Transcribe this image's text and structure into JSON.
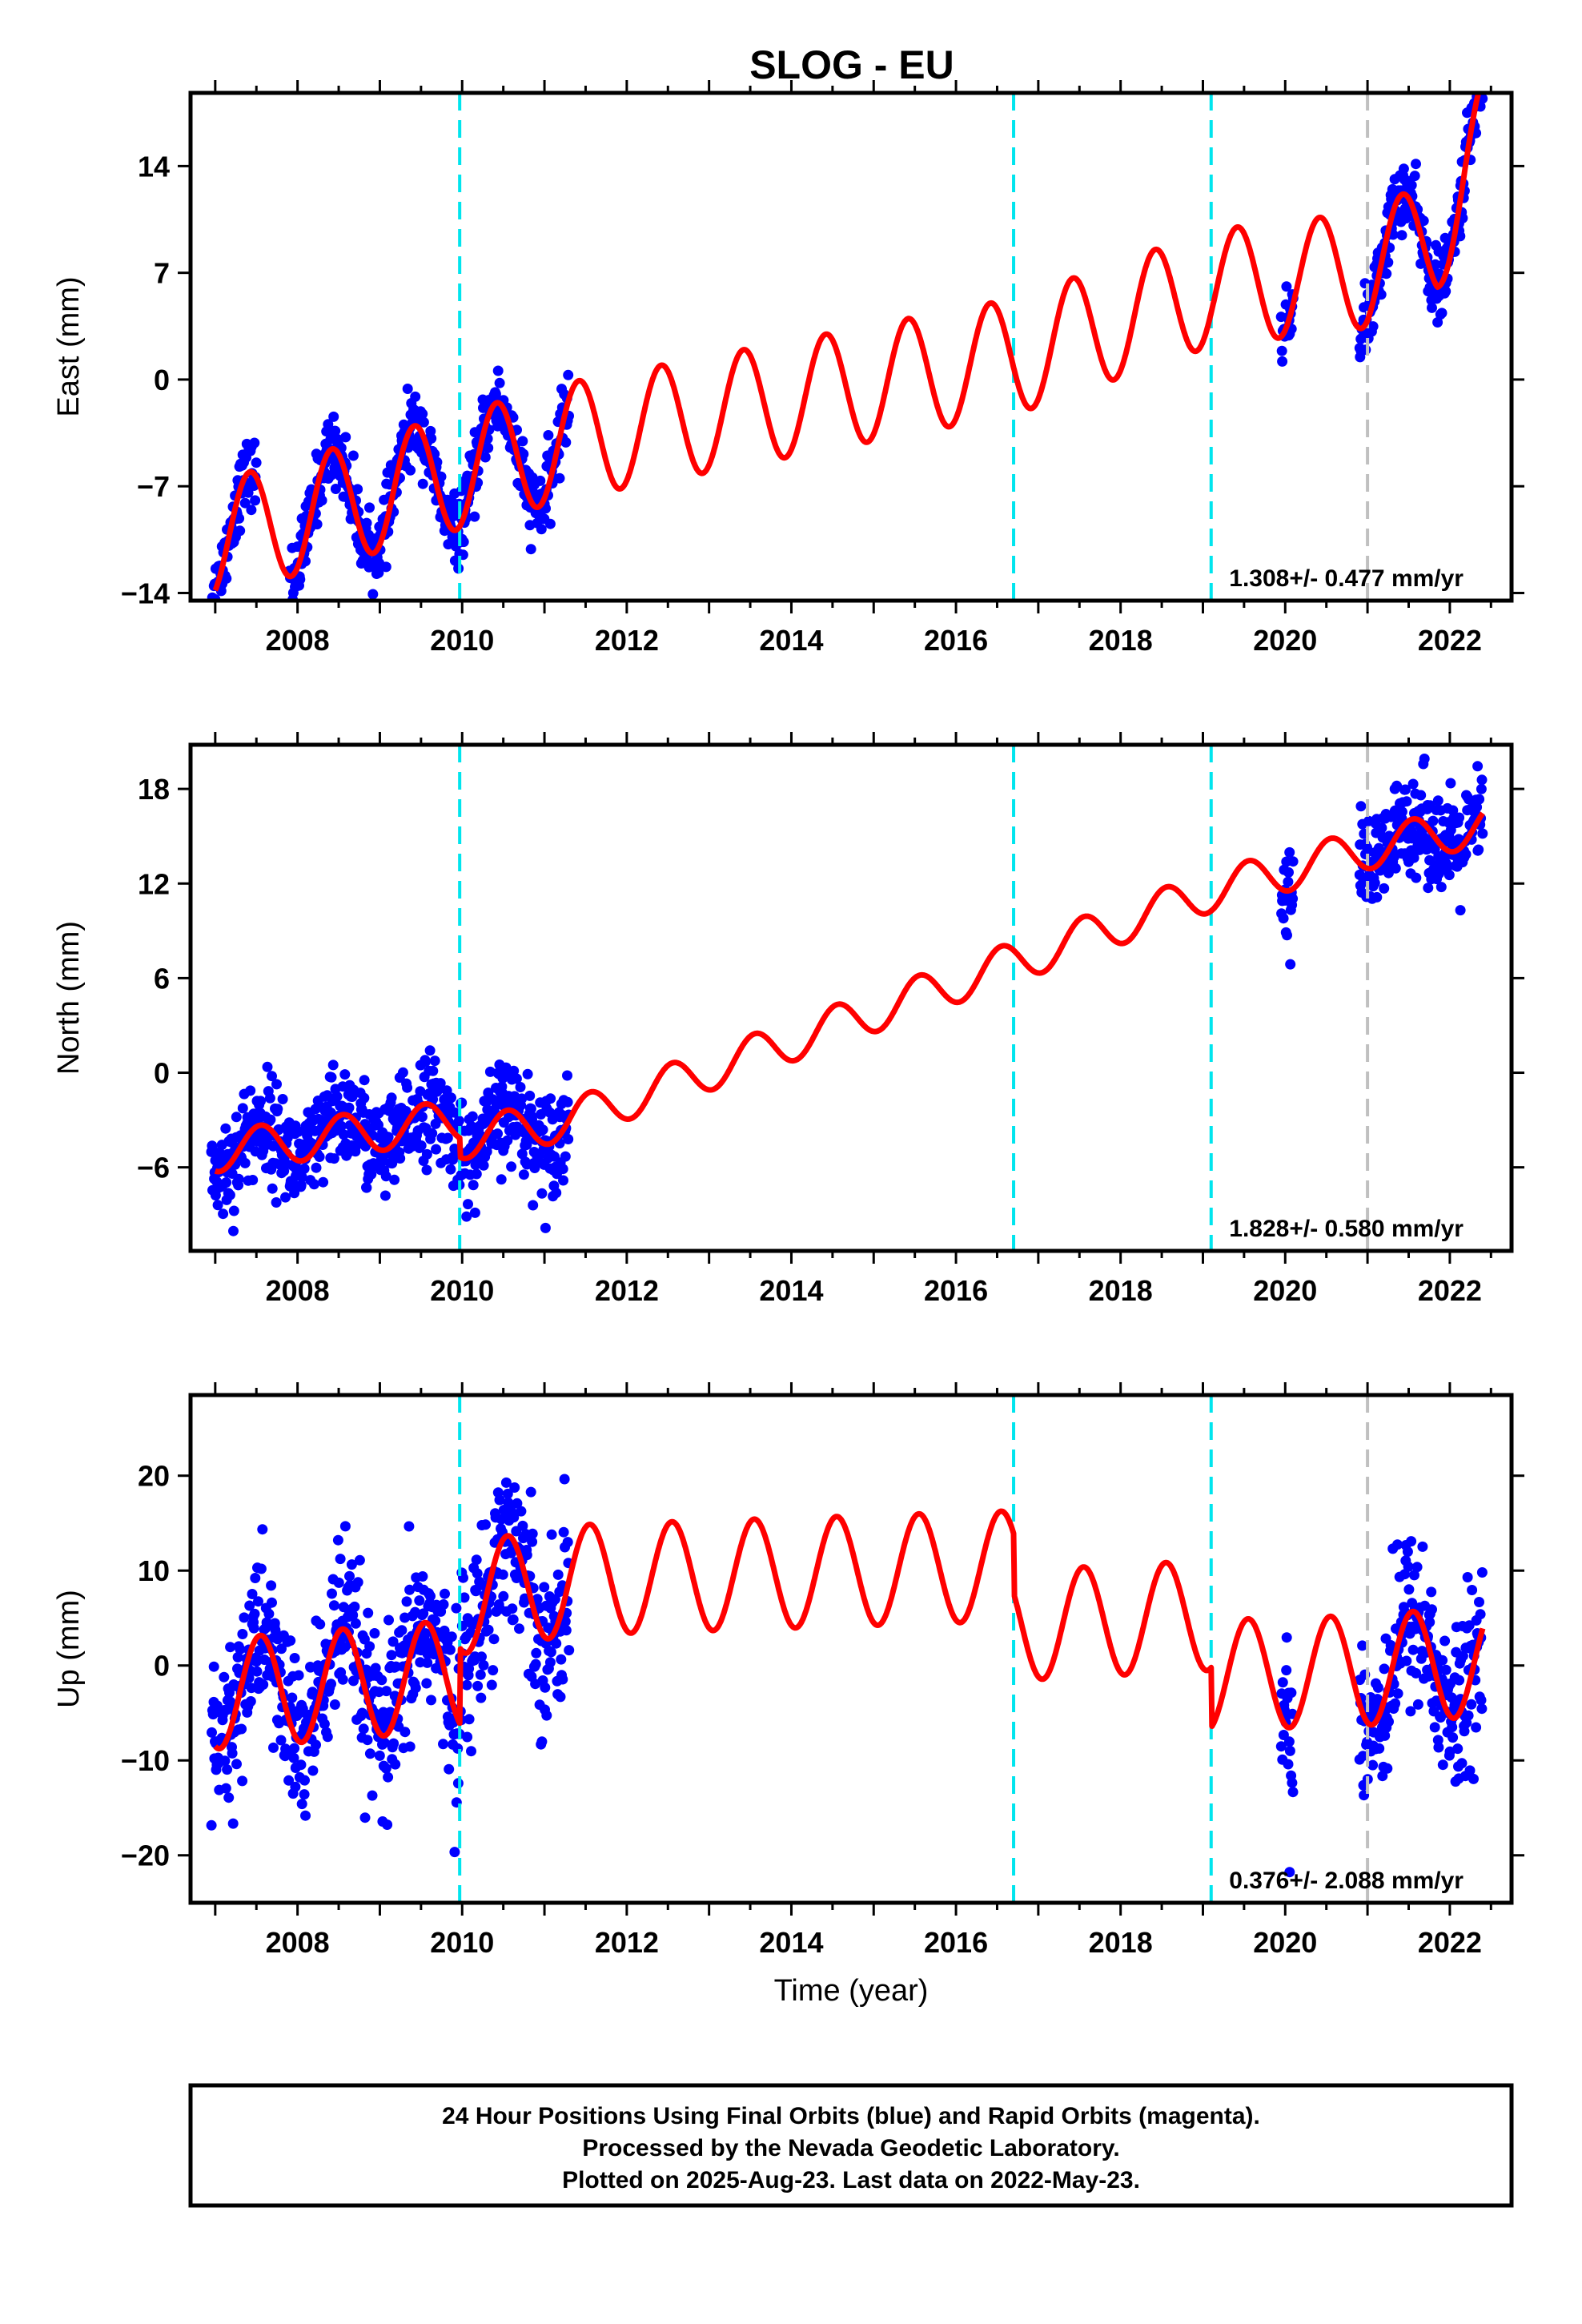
{
  "title": "SLOG - EU",
  "footer": {
    "lines": [
      "24 Hour Positions Using Final Orbits (blue) and Rapid Orbits (magenta).",
      "Processed by the Nevada Geodetic Laboratory.",
      "Plotted on 2025-Aug-23. Last data on 2022-May-23."
    ]
  },
  "colors": {
    "final_orbit_points": "#0000ff",
    "model_fit": "#ff0000",
    "equipment_change": "#00e5ee",
    "other_event": "#c0c0c0"
  },
  "chart_data": [
    {
      "type": "scatter",
      "panel": "east",
      "ylabel": "East (mm)",
      "xlabel": "",
      "xlim": [
        2006.7,
        2022.75
      ],
      "ylim": [
        -14.5,
        18.8
      ],
      "xticks": [
        2008,
        2010,
        2012,
        2014,
        2016,
        2018,
        2020,
        2022
      ],
      "yticks": [
        -14,
        -7,
        0,
        7,
        14
      ],
      "rate_label": "1.308+/- 0.477 mm/yr",
      "vlines_cyan": [
        2009.97,
        2016.7,
        2019.1
      ],
      "vlines_gray": [
        2021.0
      ],
      "data_segments": [
        [
          2006.95,
          2007.5
        ],
        [
          2007.9,
          2011.3
        ],
        [
          2019.95,
          2020.1
        ],
        [
          2020.9,
          2022.4
        ]
      ],
      "model": {
        "trend": [
          [
            2007.0,
            -10.5
          ],
          [
            2011.3,
            -4.0
          ],
          [
            2016.7,
            1.5
          ],
          [
            2019.1,
            6.0
          ],
          [
            2021.0,
            7.2
          ],
          [
            2021.85,
            9.5
          ],
          [
            2022.4,
            16.0
          ]
        ],
        "amplitude": 3.8,
        "peak": 0.42
      },
      "noise": 1.1,
      "points_per_year": 150
    },
    {
      "type": "scatter",
      "panel": "north",
      "ylabel": "North (mm)",
      "xlabel": "",
      "xlim": [
        2006.7,
        2022.75
      ],
      "ylim": [
        -11.3,
        20.8
      ],
      "xticks": [
        2008,
        2010,
        2012,
        2014,
        2016,
        2018,
        2020,
        2022
      ],
      "yticks": [
        -6,
        0,
        6,
        12,
        18
      ],
      "rate_label": "1.828+/- 0.580 mm/yr",
      "vlines_cyan": [
        2009.97,
        2016.7,
        2019.1
      ],
      "vlines_gray": [
        2021.0
      ],
      "data_segments": [
        [
          2006.95,
          2011.3
        ],
        [
          2019.95,
          2020.1
        ],
        [
          2020.9,
          2022.4
        ]
      ],
      "model": {
        "trend": [
          [
            2007.0,
            -5.0
          ],
          [
            2009.97,
            -3.0
          ],
          [
            2009.98,
            -4.2
          ],
          [
            2011.3,
            -3.0
          ],
          [
            2016.7,
            7.0
          ],
          [
            2019.1,
            11.5
          ],
          [
            2021.0,
            14.2
          ],
          [
            2022.4,
            15.7
          ]
        ],
        "amplitude": 1.3,
        "peak": 0.55
      },
      "noise": 1.6,
      "points_per_year": 150
    },
    {
      "type": "scatter",
      "panel": "up",
      "ylabel": "Up (mm)",
      "xlabel": "Time (year)",
      "xlim": [
        2006.7,
        2022.75
      ],
      "ylim": [
        -25,
        28.5
      ],
      "xticks": [
        2008,
        2010,
        2012,
        2014,
        2016,
        2018,
        2020,
        2022
      ],
      "yticks": [
        -20,
        -10,
        0,
        10,
        20
      ],
      "rate_label": "0.376+/- 2.088 mm/yr",
      "vlines_cyan": [
        2009.97,
        2016.7,
        2019.1
      ],
      "vlines_gray": [
        2021.0
      ],
      "data_segments": [
        [
          2006.95,
          2011.3
        ],
        [
          2019.95,
          2020.1
        ],
        [
          2020.9,
          2022.4
        ]
      ],
      "model": {
        "trend": [
          [
            2007.0,
            -3.0
          ],
          [
            2009.97,
            -1.0
          ],
          [
            2009.98,
            7.0
          ],
          [
            2011.3,
            9.0
          ],
          [
            2016.7,
            10.5
          ],
          [
            2016.71,
            4.2
          ],
          [
            2019.1,
            5.3
          ],
          [
            2019.11,
            -1.0
          ],
          [
            2021.0,
            -0.5
          ],
          [
            2022.4,
            0.5
          ]
        ],
        "amplitude": 5.8,
        "peak": 0.55
      },
      "noise": 4.5,
      "points_per_year": 150
    }
  ]
}
